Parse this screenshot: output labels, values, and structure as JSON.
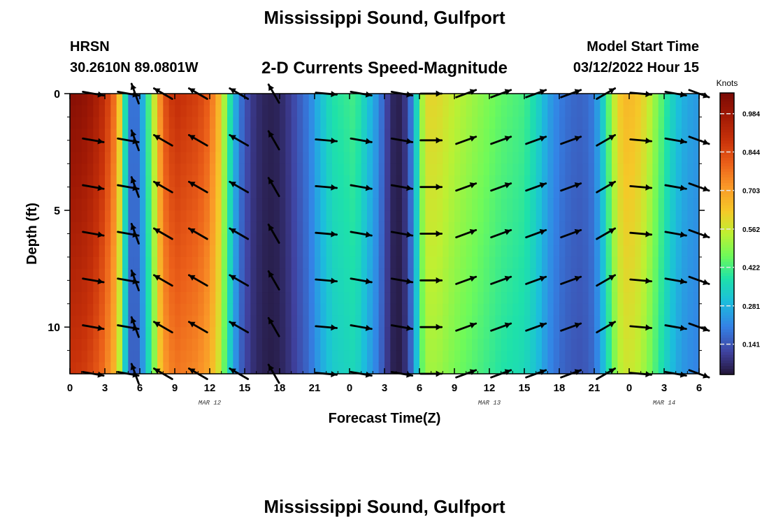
{
  "header": {
    "title": "Mississippi Sound, Gulfport",
    "station": "HRSN",
    "coords": "30.2610N  89.0801W",
    "subtitle": "2-D Currents Speed-Magnitude",
    "model_start_label": "Model Start Time",
    "model_start_time": "03/12/2022 Hour 15"
  },
  "footer": {
    "title": "Mississippi Sound, Gulfport"
  },
  "chart_data": {
    "type": "heatmap",
    "title": "2-D Currents Speed-Magnitude",
    "xlabel": "Forecast Time(Z)",
    "ylabel": "Depth (ft)",
    "xlim": [
      0,
      54
    ],
    "ylim": [
      12,
      0
    ],
    "x_ticks": [
      0,
      3,
      6,
      9,
      12,
      15,
      18,
      21,
      24,
      27,
      30,
      33,
      36,
      39,
      42,
      45,
      48,
      51,
      54
    ],
    "x_tick_labels": [
      "0",
      "3",
      "6",
      "9",
      "12",
      "15",
      "18",
      "21",
      "0",
      "3",
      "6",
      "9",
      "12",
      "15",
      "18",
      "21",
      "0",
      "3",
      "6"
    ],
    "y_ticks": [
      0,
      5,
      10
    ],
    "y_tick_labels": [
      "0",
      "5",
      "10"
    ],
    "date_labels": [
      {
        "x": 12,
        "label": "MAR 12"
      },
      {
        "x": 36,
        "label": "MAR 13"
      },
      {
        "x": 51,
        "label": "MAR 14"
      }
    ],
    "colorbar": {
      "unit": "Knots",
      "vmin": 0.03,
      "vmax": 1.06,
      "ticks": [
        0.141,
        0.281,
        0.422,
        0.562,
        0.703,
        0.844,
        0.984
      ],
      "tick_labels": [
        "0.141",
        "0.281",
        "0.422",
        "0.562",
        "0.703",
        "0.844",
        "0.984"
      ]
    },
    "speed_profile": {
      "x": [
        0,
        1,
        2,
        3,
        3.8,
        4.5,
        5,
        5.5,
        6,
        6.5,
        7.2,
        8,
        9,
        10,
        11,
        12,
        12.8,
        13.5,
        14.5,
        15.5,
        16.5,
        17.5,
        18.5,
        19.5,
        20.5,
        21.5,
        22.5,
        23.5,
        24.5,
        25.5,
        26.5,
        27,
        27.5,
        28,
        28.5,
        29,
        29.5,
        30,
        30.5,
        31.5,
        33,
        35,
        37,
        39,
        40,
        41,
        42,
        43,
        44,
        45,
        46,
        46.5,
        47,
        47.5,
        48.5,
        49.5,
        50.5,
        51.5,
        52.5,
        53.5,
        54
      ],
      "values": [
        1.03,
        1.02,
        0.98,
        0.9,
        0.78,
        0.55,
        0.2,
        0.17,
        0.2,
        0.35,
        0.55,
        0.82,
        0.9,
        0.88,
        0.86,
        0.8,
        0.66,
        0.45,
        0.2,
        0.1,
        0.06,
        0.05,
        0.08,
        0.14,
        0.2,
        0.3,
        0.38,
        0.4,
        0.42,
        0.32,
        0.22,
        0.14,
        0.08,
        0.04,
        0.06,
        0.12,
        0.25,
        0.45,
        0.6,
        0.6,
        0.55,
        0.5,
        0.45,
        0.42,
        0.36,
        0.26,
        0.2,
        0.17,
        0.16,
        0.2,
        0.38,
        0.52,
        0.6,
        0.66,
        0.65,
        0.58,
        0.47,
        0.36,
        0.28,
        0.25,
        0.24
      ]
    },
    "vectors": {
      "depths": [
        0,
        2,
        4,
        6,
        8,
        10,
        12
      ],
      "times": [
        2,
        5,
        5.6,
        8,
        11,
        14.5,
        17.5,
        22,
        25,
        28.5,
        31,
        34,
        37,
        40,
        43,
        46,
        49,
        52,
        54
      ],
      "direction_deg": [
        10,
        10,
        250,
        210,
        210,
        210,
        240,
        5,
        10,
        10,
        0,
        340,
        340,
        340,
        340,
        330,
        5,
        10,
        20
      ],
      "direction_convention": "degrees clockwise from the +x (east) direction as drawn"
    }
  }
}
